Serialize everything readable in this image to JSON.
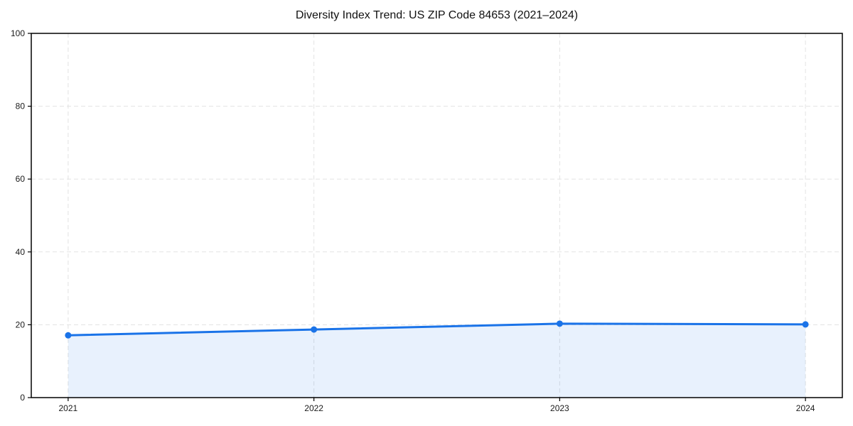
{
  "chart": {
    "title": "Diversity Index Trend: US ZIP Code 84653 (2021–2024)"
  },
  "chart_data": {
    "type": "area",
    "title": "Diversity Index Trend: US ZIP Code 84653 (2021–2024)",
    "xlabel": "",
    "ylabel": "",
    "x": [
      2021,
      2022,
      2023,
      2024
    ],
    "series": [
      {
        "name": "Diversity Index",
        "values": [
          17.1,
          18.7,
          20.3,
          20.1
        ]
      }
    ],
    "xticks": [
      2021,
      2022,
      2023,
      2024
    ],
    "xtick_labels": [
      "2021",
      "2022",
      "2023",
      "2024"
    ],
    "yticks": [
      0,
      20,
      40,
      60,
      80,
      100
    ],
    "ytick_labels": [
      "0",
      "20",
      "40",
      "60",
      "80",
      "100"
    ],
    "xlim": [
      2020.85,
      2024.15
    ],
    "ylim": [
      0,
      100
    ],
    "grid": true,
    "grid_style": "dashed",
    "legend": "none",
    "colors": {
      "line": "#1a73e8",
      "marker": "#1a73e8",
      "fill": "rgba(26,115,232,0.10)",
      "grid": "#e3e3e3",
      "spine": "#000000",
      "tick_text": "#1a1a1a",
      "background": "#ffffff"
    }
  }
}
